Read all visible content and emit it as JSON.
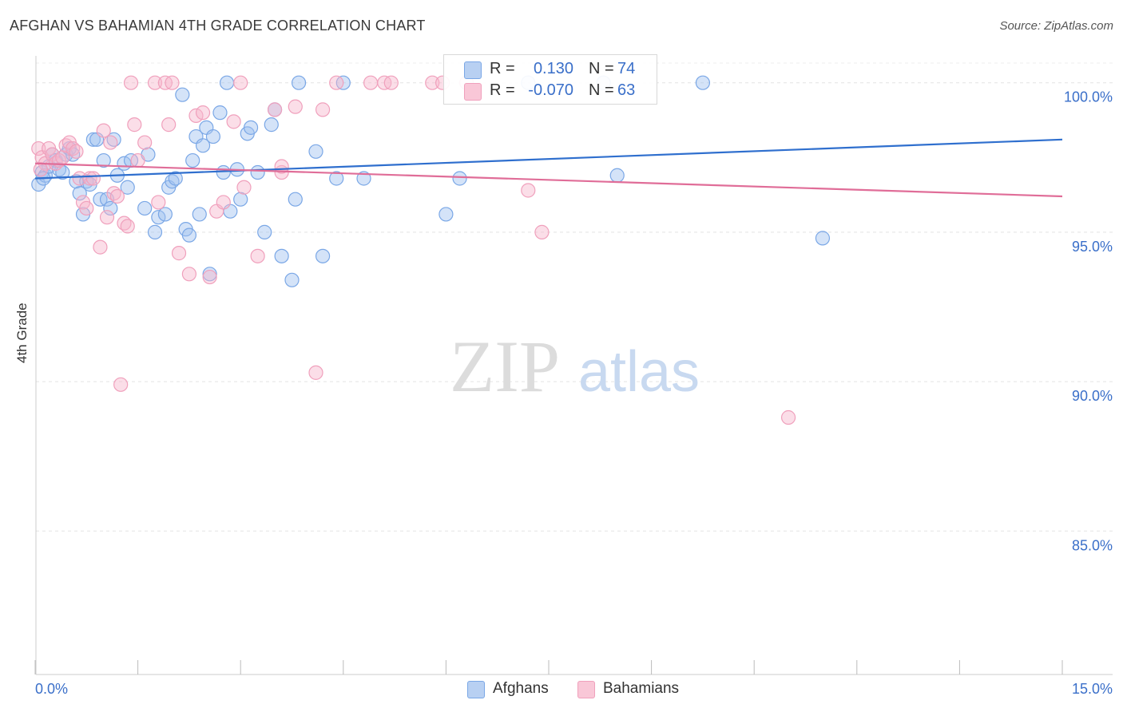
{
  "title": "AFGHAN VS BAHAMIAN 4TH GRADE CORRELATION CHART",
  "source": "Source: ZipAtlas.com",
  "watermark": {
    "zip": "ZIP",
    "atlas": "atlas"
  },
  "legend": {
    "afghans": {
      "r_label": "R =",
      "r_value": "0.130",
      "n_label": "N =",
      "n_value": "74"
    },
    "bahamians": {
      "r_label": "R =",
      "r_value": "-0.070",
      "n_label": "N =",
      "n_value": "63"
    }
  },
  "chart_data": {
    "type": "scatter",
    "title": "AFGHAN VS BAHAMIAN 4TH GRADE CORRELATION CHART",
    "xlabel": "",
    "ylabel": "4th Grade",
    "xlim": [
      0,
      15
    ],
    "ylim": [
      80.2,
      100.9
    ],
    "x_tick_labels": [
      "0.0%",
      "15.0%"
    ],
    "y_ticks": [
      100,
      95,
      90,
      85
    ],
    "y_tick_labels": [
      "100.0%",
      "95.0%",
      "90.0%",
      "85.0%"
    ],
    "grid": true,
    "legend_position": "top-center",
    "series": [
      {
        "name": "Afghans",
        "color": "#7aa7e6",
        "line_color": "#2f6fce",
        "r": 0.13,
        "n": 74,
        "trend": [
          [
            0.0,
            96.8
          ],
          [
            15.0,
            98.1
          ]
        ],
        "points": [
          [
            0.05,
            96.6
          ],
          [
            0.1,
            97.0
          ],
          [
            0.15,
            96.9
          ],
          [
            0.2,
            97.2
          ],
          [
            0.25,
            97.6
          ],
          [
            0.3,
            97.4
          ],
          [
            0.35,
            97.1
          ],
          [
            0.4,
            97.0
          ],
          [
            0.45,
            97.6
          ],
          [
            0.5,
            97.8
          ],
          [
            0.55,
            97.6
          ],
          [
            0.6,
            96.7
          ],
          [
            0.65,
            96.3
          ],
          [
            0.7,
            95.6
          ],
          [
            0.75,
            96.7
          ],
          [
            0.8,
            96.6
          ],
          [
            0.85,
            98.1
          ],
          [
            0.9,
            98.1
          ],
          [
            0.95,
            96.1
          ],
          [
            1.0,
            97.4
          ],
          [
            1.05,
            96.1
          ],
          [
            1.1,
            95.8
          ],
          [
            1.15,
            98.1
          ],
          [
            1.2,
            96.9
          ],
          [
            1.3,
            97.3
          ],
          [
            1.35,
            96.5
          ],
          [
            1.4,
            97.4
          ],
          [
            1.6,
            95.8
          ],
          [
            1.65,
            97.6
          ],
          [
            1.75,
            95.0
          ],
          [
            1.8,
            95.5
          ],
          [
            1.9,
            95.6
          ],
          [
            1.95,
            96.5
          ],
          [
            2.0,
            96.7
          ],
          [
            2.05,
            96.8
          ],
          [
            2.15,
            99.6
          ],
          [
            2.2,
            95.1
          ],
          [
            2.25,
            94.9
          ],
          [
            2.3,
            97.4
          ],
          [
            2.35,
            98.2
          ],
          [
            2.4,
            95.6
          ],
          [
            2.45,
            97.9
          ],
          [
            2.5,
            98.5
          ],
          [
            2.55,
            93.6
          ],
          [
            2.6,
            98.2
          ],
          [
            2.7,
            99.0
          ],
          [
            2.75,
            97.0
          ],
          [
            2.8,
            100.0
          ],
          [
            2.85,
            95.7
          ],
          [
            2.95,
            97.1
          ],
          [
            3.0,
            96.1
          ],
          [
            3.1,
            98.3
          ],
          [
            3.15,
            98.5
          ],
          [
            3.25,
            97.0
          ],
          [
            3.35,
            95.0
          ],
          [
            3.45,
            98.6
          ],
          [
            3.5,
            99.1
          ],
          [
            3.6,
            94.2
          ],
          [
            3.75,
            93.4
          ],
          [
            3.8,
            96.1
          ],
          [
            3.85,
            100.0
          ],
          [
            4.1,
            97.7
          ],
          [
            4.2,
            94.2
          ],
          [
            4.4,
            96.8
          ],
          [
            4.5,
            100.0
          ],
          [
            4.8,
            96.8
          ],
          [
            6.0,
            95.6
          ],
          [
            6.2,
            96.8
          ],
          [
            7.2,
            100.0
          ],
          [
            8.3,
            100.0
          ],
          [
            8.5,
            96.9
          ],
          [
            9.75,
            100.0
          ],
          [
            11.5,
            94.8
          ],
          [
            0.12,
            96.8
          ]
        ]
      },
      {
        "name": "Bahamians",
        "color": "#f0a0bc",
        "line_color": "#e06d98",
        "r": -0.07,
        "n": 63,
        "trend": [
          [
            0.0,
            97.3
          ],
          [
            15.0,
            96.2
          ]
        ],
        "points": [
          [
            0.05,
            97.8
          ],
          [
            0.1,
            97.5
          ],
          [
            0.15,
            97.3
          ],
          [
            0.2,
            97.8
          ],
          [
            0.25,
            97.6
          ],
          [
            0.3,
            97.3
          ],
          [
            0.35,
            97.4
          ],
          [
            0.4,
            97.5
          ],
          [
            0.45,
            97.9
          ],
          [
            0.5,
            98.0
          ],
          [
            0.55,
            97.8
          ],
          [
            0.6,
            97.7
          ],
          [
            0.65,
            96.8
          ],
          [
            0.7,
            96.0
          ],
          [
            0.75,
            95.8
          ],
          [
            0.8,
            96.8
          ],
          [
            0.85,
            96.8
          ],
          [
            0.95,
            94.5
          ],
          [
            1.0,
            98.4
          ],
          [
            1.05,
            95.5
          ],
          [
            1.1,
            98.0
          ],
          [
            1.15,
            96.3
          ],
          [
            1.2,
            96.2
          ],
          [
            1.3,
            95.3
          ],
          [
            1.35,
            95.2
          ],
          [
            1.4,
            100.0
          ],
          [
            1.45,
            98.6
          ],
          [
            1.5,
            97.4
          ],
          [
            1.6,
            98.0
          ],
          [
            1.75,
            100.0
          ],
          [
            1.8,
            96.0
          ],
          [
            1.9,
            100.0
          ],
          [
            1.95,
            98.6
          ],
          [
            2.0,
            100.0
          ],
          [
            2.1,
            94.3
          ],
          [
            2.25,
            93.6
          ],
          [
            2.35,
            98.9
          ],
          [
            2.45,
            99.0
          ],
          [
            2.55,
            93.5
          ],
          [
            2.65,
            95.7
          ],
          [
            2.75,
            96.0
          ],
          [
            2.9,
            98.7
          ],
          [
            3.0,
            100.0
          ],
          [
            3.05,
            96.5
          ],
          [
            3.25,
            94.2
          ],
          [
            3.5,
            99.1
          ],
          [
            3.6,
            97.0
          ],
          [
            3.8,
            99.2
          ],
          [
            4.2,
            99.1
          ],
          [
            4.4,
            100.0
          ],
          [
            4.9,
            100.0
          ],
          [
            5.1,
            100.0
          ],
          [
            5.2,
            100.0
          ],
          [
            5.8,
            100.0
          ],
          [
            5.95,
            100.0
          ],
          [
            6.3,
            100.0
          ],
          [
            7.2,
            96.4
          ],
          [
            7.4,
            95.0
          ],
          [
            4.1,
            90.3
          ],
          [
            1.25,
            89.9
          ],
          [
            11.0,
            88.8
          ],
          [
            0.08,
            97.1
          ],
          [
            3.6,
            97.2
          ]
        ]
      }
    ]
  }
}
